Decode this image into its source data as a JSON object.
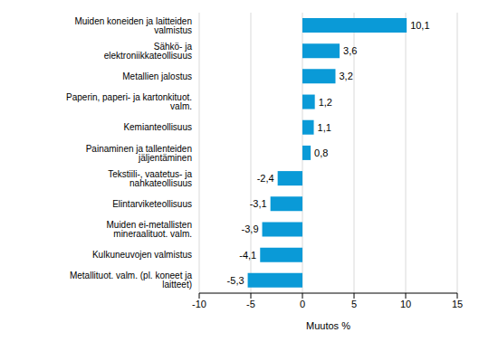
{
  "chart_data": {
    "type": "bar",
    "orientation": "horizontal",
    "categories": [
      "Muiden koneiden ja laitteiden valmistus",
      "Sähkö- ja elektroniikkateollisuus",
      "Metallien jalostus",
      "Paperin, paperi- ja kartonkituot. valm.",
      "Kemianteollisuus",
      "Painaminen ja tallenteiden jäljentäminen",
      "Tekstiili-, vaatetus- ja nahkateollisuus",
      "Elintarviketeollisuus",
      "Muiden ei-metallisten mineraalituot. valm.",
      "Kulkuneuvojen valmistus",
      "Metallituot. valm. (pl. koneet ja laitteet)"
    ],
    "values": [
      10.1,
      3.6,
      3.2,
      1.2,
      1.1,
      0.8,
      -2.4,
      -3.1,
      -3.9,
      -4.1,
      -5.3
    ],
    "value_labels": [
      "10,1",
      "3,6",
      "3,2",
      "1,2",
      "1,1",
      "0,8",
      "-2,4",
      "-3,1",
      "-3,9",
      "-4,1",
      "-5,3"
    ],
    "data_labels": true,
    "color": "#0a9ad7",
    "xlabel": "Muutos %",
    "xlim": [
      -10,
      15
    ],
    "xticks": [
      -10,
      -5,
      0,
      5,
      10,
      15
    ],
    "grid": true
  }
}
